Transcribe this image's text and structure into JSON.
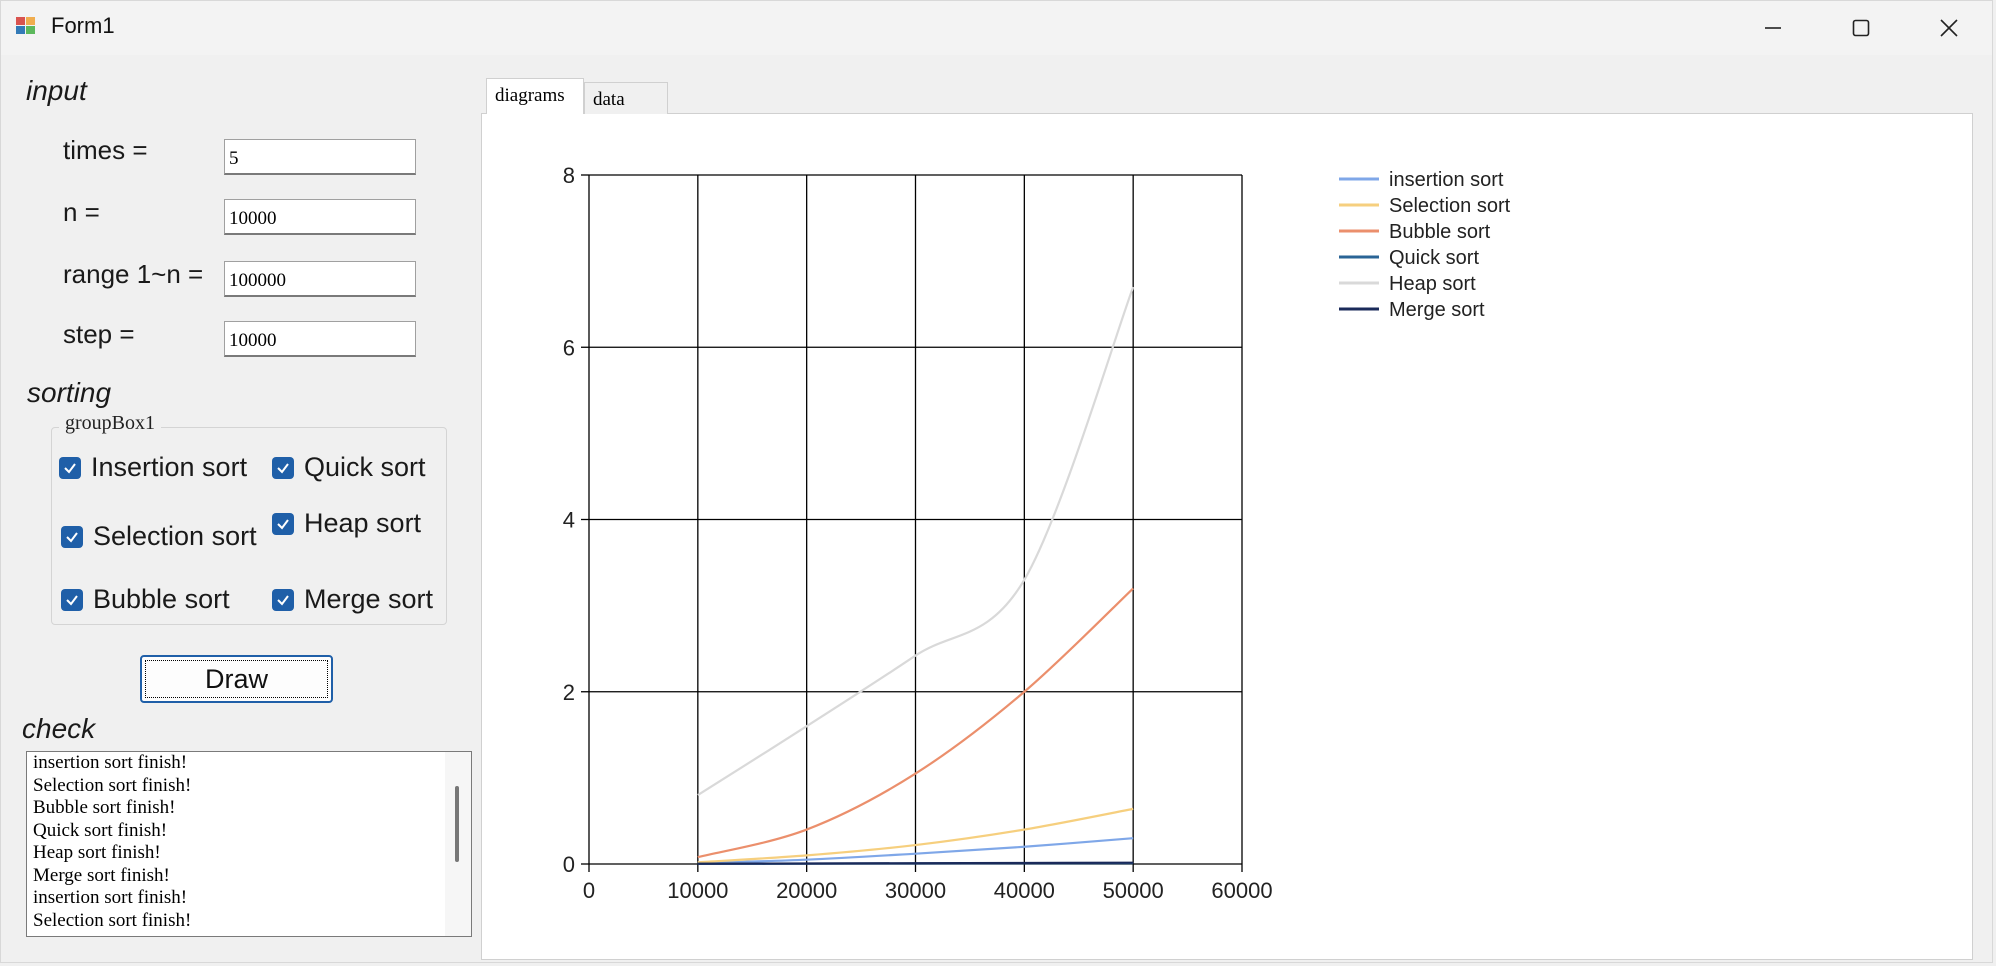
{
  "window": {
    "title": "Form1"
  },
  "input": {
    "section_label": "input",
    "fields": [
      {
        "label": "times =",
        "value": "5"
      },
      {
        "label": "n =",
        "value": "10000"
      },
      {
        "label": "range 1~n =",
        "value": "100000"
      },
      {
        "label": "step =",
        "value": "10000"
      }
    ]
  },
  "sorting": {
    "section_label": "sorting",
    "group_title": "groupBox1",
    "checkboxes": [
      {
        "label": "Insertion sort",
        "checked": true
      },
      {
        "label": "Quick sort",
        "checked": true
      },
      {
        "label": "Selection sort",
        "checked": true
      },
      {
        "label": "Heap sort",
        "checked": true
      },
      {
        "label": "Bubble sort",
        "checked": true
      },
      {
        "label": "Merge sort",
        "checked": true
      }
    ]
  },
  "draw_button": {
    "label": "Draw"
  },
  "check": {
    "section_label": "check",
    "lines": [
      "insertion sort finish!",
      "Selection sort finish!",
      "Bubble sort finish!",
      "Quick sort finish!",
      "Heap sort finish!",
      "Merge sort finish!",
      "insertion sort finish!",
      "Selection sort finish!"
    ]
  },
  "tabs": [
    {
      "label": "diagrams",
      "selected": true
    },
    {
      "label": "data",
      "selected": false
    }
  ],
  "colors": {
    "accent": "#1f5fa8"
  },
  "chart_data": {
    "type": "line",
    "title": "",
    "xlabel": "",
    "ylabel": "",
    "xlim": [
      0,
      60000
    ],
    "ylim": [
      0,
      8
    ],
    "x_ticks": [
      0,
      10000,
      20000,
      30000,
      40000,
      50000,
      60000
    ],
    "y_ticks": [
      0,
      2,
      4,
      6,
      8
    ],
    "grid": true,
    "legend_position": "top-right",
    "x": [
      10000,
      20000,
      30000,
      40000,
      50000
    ],
    "series": [
      {
        "name": "insertion sort",
        "color": "#7fa7e8",
        "values": [
          0.01,
          0.05,
          0.12,
          0.2,
          0.3
        ]
      },
      {
        "name": "Selection sort",
        "color": "#f6cf7e",
        "values": [
          0.02,
          0.1,
          0.22,
          0.4,
          0.64
        ]
      },
      {
        "name": "Bubble sort",
        "color": "#eb8f6c",
        "values": [
          0.08,
          0.4,
          1.05,
          2.0,
          3.2
        ]
      },
      {
        "name": "Quick sort",
        "color": "#2a6496",
        "values": [
          0.002,
          0.004,
          0.006,
          0.008,
          0.01
        ]
      },
      {
        "name": "Heap sort",
        "color": "#d9d9d9",
        "values": [
          0.8,
          1.6,
          2.42,
          3.3,
          6.7
        ]
      },
      {
        "name": "Merge sort",
        "color": "#1a2a5a",
        "values": [
          0.003,
          0.006,
          0.009,
          0.012,
          0.015
        ]
      }
    ]
  }
}
